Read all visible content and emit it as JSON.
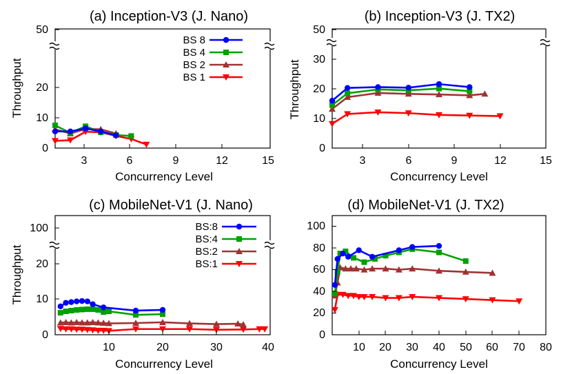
{
  "colors": {
    "BS8": "#0000ff",
    "BS4": "#00a000",
    "BS2": "#a03232",
    "BS1": "#ff0000"
  },
  "chart_data": [
    {
      "type": "line",
      "title": "(a) Inception-V3 (J. Nano)",
      "xlabel": "Concurrency Level",
      "ylabel": "Throughput",
      "xlim": [
        1,
        15
      ],
      "xticks": [
        "3",
        "6",
        "9",
        "12",
        "15"
      ],
      "yticks": [
        "0",
        "10",
        "20",
        "50"
      ],
      "axis_break": "between 20 and 50",
      "legend": "top-center",
      "series": [
        {
          "name": "BS 8",
          "color_key": "BS8",
          "marker": "circle",
          "x": [
            1,
            2,
            3,
            4,
            5
          ],
          "y": [
            5.5,
            5.5,
            6.5,
            5.5,
            4.2
          ]
        },
        {
          "name": "BS 4",
          "color_key": "BS4",
          "marker": "square",
          "x": [
            1,
            2,
            3,
            4,
            5,
            6
          ],
          "y": [
            7.5,
            5.0,
            7.2,
            5.2,
            4.3,
            4.0
          ]
        },
        {
          "name": "BS 2",
          "color_key": "BS2",
          "marker": "triangle-up",
          "x": [
            1,
            2,
            3,
            4,
            5
          ],
          "y": [
            6.2,
            4.8,
            6.3,
            6.2,
            4.8
          ]
        },
        {
          "name": "BS 1",
          "color_key": "BS1",
          "marker": "triangle-down",
          "x": [
            1,
            2,
            3,
            4,
            5,
            6,
            7
          ],
          "y": [
            2.4,
            2.6,
            5.4,
            5.2,
            4.0,
            3.0,
            1.2
          ]
        }
      ]
    },
    {
      "type": "line",
      "title": "(b) Inception-V3 (J. TX2)",
      "xlabel": "Concurrency Level",
      "ylabel": "Throughput",
      "xlim": [
        1,
        15
      ],
      "xticks": [
        "3",
        "6",
        "9",
        "12",
        "15"
      ],
      "yticks": [
        "0",
        "10",
        "20",
        "30",
        "50"
      ],
      "axis_break": "between 30 and 50",
      "series": [
        {
          "name": "BS 8",
          "color_key": "BS8",
          "marker": "circle",
          "x": [
            1,
            2,
            4,
            6,
            8,
            10
          ],
          "y": [
            16,
            20.3,
            20.6,
            20.4,
            21.6,
            20.6
          ]
        },
        {
          "name": "BS 4",
          "color_key": "BS4",
          "marker": "square",
          "x": [
            1,
            2,
            4,
            6,
            8,
            10
          ],
          "y": [
            14.5,
            18.5,
            19.8,
            19.5,
            20.1,
            19.2
          ]
        },
        {
          "name": "BS 2",
          "color_key": "BS2",
          "marker": "triangle-up",
          "x": [
            1,
            2,
            4,
            6,
            8,
            10,
            11
          ],
          "y": [
            13.2,
            17.2,
            18.6,
            18.3,
            18.1,
            17.8,
            18.3
          ]
        },
        {
          "name": "BS 1",
          "color_key": "BS1",
          "marker": "triangle-down",
          "x": [
            1,
            2,
            4,
            6,
            8,
            10,
            12
          ],
          "y": [
            8.2,
            11.5,
            12.1,
            11.8,
            11.2,
            11.0,
            10.8
          ]
        }
      ]
    },
    {
      "type": "line",
      "title": "(c) MobileNet-V1 (J. Nano)",
      "xlabel": "Concurrency Level",
      "ylabel": "Throughput",
      "xlim": [
        0,
        40
      ],
      "xticks": [
        "10",
        "20",
        "30",
        "40"
      ],
      "yticks": [
        "0",
        "10",
        "20",
        "100"
      ],
      "axis_break": "between 20 and 100",
      "legend": "top-right",
      "series": [
        {
          "name": "BS:8",
          "color_key": "BS8",
          "marker": "circle",
          "x": [
            1,
            2,
            3,
            4,
            5,
            6,
            7,
            9,
            15,
            20
          ],
          "y": [
            8.0,
            9.0,
            9.2,
            9.4,
            9.5,
            9.4,
            8.6,
            7.7,
            6.8,
            7.0
          ]
        },
        {
          "name": "BS:4",
          "color_key": "BS4",
          "marker": "square",
          "x": [
            1,
            2,
            3,
            4,
            5,
            6,
            7,
            8,
            9,
            10,
            15,
            20
          ],
          "y": [
            6.2,
            6.6,
            6.8,
            7.0,
            7.1,
            7.2,
            7.2,
            7.0,
            6.4,
            6.6,
            5.6,
            5.8
          ]
        },
        {
          "name": "BS:2",
          "color_key": "BS2",
          "marker": "triangle-up",
          "x": [
            1,
            2,
            3,
            4,
            5,
            6,
            7,
            8,
            9,
            10,
            15,
            20,
            25,
            30,
            34,
            35
          ],
          "y": [
            3.4,
            3.5,
            3.4,
            3.5,
            3.4,
            3.4,
            3.5,
            3.4,
            3.3,
            3.2,
            3.3,
            3.5,
            3.2,
            3.0,
            3.1,
            2.9
          ]
        },
        {
          "name": "BS:1",
          "color_key": "BS1",
          "marker": "triangle-down",
          "x": [
            1,
            2,
            3,
            4,
            5,
            6,
            7,
            8,
            9,
            10,
            15,
            20,
            25,
            30,
            35,
            38,
            39
          ],
          "y": [
            1.7,
            1.6,
            1.6,
            1.5,
            1.5,
            1.4,
            1.3,
            1.2,
            1.2,
            1.1,
            1.6,
            1.6,
            1.6,
            1.4,
            1.5,
            1.6,
            1.6
          ]
        }
      ]
    },
    {
      "type": "line",
      "title": "(d) MobileNet-V1 (J. TX2)",
      "xlabel": "Concurrency Level",
      "ylabel": "",
      "xlim": [
        0,
        80
      ],
      "ylim": [
        0,
        110
      ],
      "xticks": [
        "10",
        "20",
        "30",
        "40",
        "50",
        "60",
        "70",
        "80"
      ],
      "yticks": [
        "0",
        "20",
        "40",
        "60",
        "80",
        "100"
      ],
      "series": [
        {
          "name": "BS:8",
          "color_key": "BS8",
          "marker": "circle",
          "x": [
            1,
            2,
            4,
            6,
            10,
            15,
            25,
            30,
            40
          ],
          "y": [
            46,
            70,
            75,
            72,
            78,
            72,
            78,
            81,
            82
          ]
        },
        {
          "name": "BS:4",
          "color_key": "BS4",
          "marker": "square",
          "x": [
            1,
            2,
            3,
            5,
            8,
            12,
            16,
            20,
            25,
            30,
            40,
            50
          ],
          "y": [
            38,
            58,
            75,
            77,
            71,
            67,
            70,
            73,
            76,
            79,
            76,
            68
          ]
        },
        {
          "name": "BS:2",
          "color_key": "BS2",
          "marker": "triangle-up",
          "x": [
            1,
            2,
            3,
            5,
            7,
            9,
            12,
            15,
            20,
            25,
            30,
            40,
            50,
            60
          ],
          "y": [
            36,
            48,
            62,
            61,
            61,
            61,
            60,
            61,
            61,
            60,
            61,
            59,
            58,
            57
          ]
        },
        {
          "name": "BS:1",
          "color_key": "BS1",
          "marker": "triangle-down",
          "x": [
            1,
            2,
            4,
            6,
            8,
            10,
            12,
            15,
            20,
            25,
            30,
            40,
            50,
            60,
            70
          ],
          "y": [
            23,
            37,
            37,
            36,
            36,
            35,
            35,
            35,
            34,
            34,
            35,
            34,
            33,
            32,
            31
          ]
        }
      ]
    }
  ]
}
